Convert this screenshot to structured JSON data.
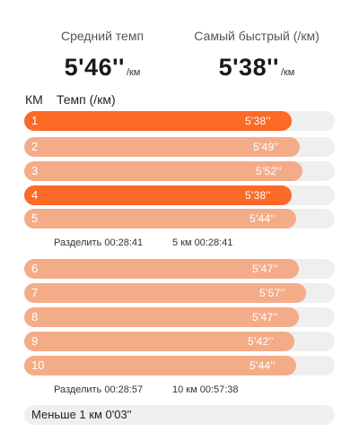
{
  "summary": {
    "avg": {
      "label": "Средний темп",
      "value": "5'46''",
      "unit": "/км"
    },
    "fastest": {
      "label": "Самый быстрый (/км)",
      "value": "5'38''",
      "unit": "/км"
    }
  },
  "table_header": {
    "km": "КМ",
    "pace": "Темп (/км)"
  },
  "rows": [
    {
      "km": "1",
      "pace": "5'38''",
      "seconds": 338,
      "fastest": true
    },
    {
      "km": "2",
      "pace": "5'49''",
      "seconds": 349,
      "fastest": false
    },
    {
      "km": "3",
      "pace": "5'52''",
      "seconds": 352,
      "fastest": false
    },
    {
      "km": "4",
      "pace": "5'38''",
      "seconds": 338,
      "fastest": true
    },
    {
      "km": "5",
      "pace": "5'44''",
      "seconds": 344,
      "fastest": false
    },
    {
      "km": "6",
      "pace": "5'47''",
      "seconds": 347,
      "fastest": false
    },
    {
      "km": "7",
      "pace": "5'57''",
      "seconds": 357,
      "fastest": false
    },
    {
      "km": "8",
      "pace": "5'47''",
      "seconds": 347,
      "fastest": false
    },
    {
      "km": "9",
      "pace": "5'42''",
      "seconds": 342,
      "fastest": false
    },
    {
      "km": "10",
      "pace": "5'44''",
      "seconds": 344,
      "fastest": false
    }
  ],
  "splits": [
    {
      "left": "Разделить 00:28:41",
      "right": "5 км 00:28:41"
    },
    {
      "left": "Разделить 00:28:57",
      "right": "10 км 00:57:38"
    }
  ],
  "remainder": {
    "label": "Меньше 1 км 0'03''"
  },
  "colors": {
    "fastest_bar": "#fb6a27",
    "normal_bar": "#f4ac88",
    "track": "#efefef"
  }
}
